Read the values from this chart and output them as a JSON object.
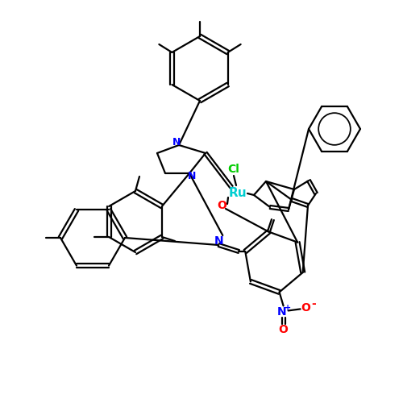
{
  "bg_color": "#ffffff",
  "atom_colors": {
    "Ru": "#00ced1",
    "Cl": "#00cc00",
    "N": "#0000ff",
    "O": "#ff0000"
  },
  "figsize": [
    5.0,
    5.0
  ],
  "dpi": 100
}
